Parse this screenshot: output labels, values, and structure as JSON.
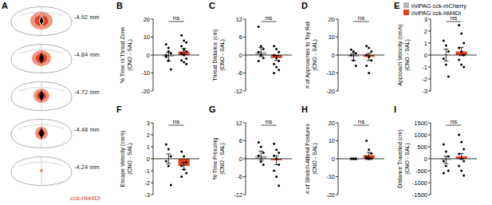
{
  "panel_a": {
    "title": "A",
    "levels": [
      "-4.92 mm",
      "-4.84 mm",
      "-4.72 mm",
      "-4.48 mm",
      "-4.24 mm"
    ],
    "caption": "cck-hM4Di"
  },
  "chart_data": [
    {
      "type": "bar",
      "title": "B",
      "y_label": [
        "% Time in Threat Zone",
        "(CNO - SAL)"
      ],
      "categories": [
        null
      ],
      "tick_labels": "y",
      "legend": "top right",
      "annotation": "ns",
      "ylim": [
        -20,
        20
      ],
      "yticks": [
        -20,
        -10,
        0,
        10,
        20
      ],
      "series": [
        {
          "name": "l/vlPAG cck-mCherry",
          "color": "#b3b3b3",
          "values": [
            -1
          ],
          "errors": [
            2.5
          ],
          "points": [
            6,
            4,
            1,
            -1,
            -3,
            -8,
            0,
            2
          ]
        },
        {
          "name": "l/vlPAG cck-hM4Di",
          "color": "#e2401f",
          "values": [
            2
          ],
          "errors": [
            1.8
          ],
          "points": [
            11,
            8,
            7,
            5,
            3,
            2,
            1,
            0,
            -2,
            -3,
            -4,
            -5
          ]
        }
      ]
    },
    {
      "type": "bar",
      "title": "C",
      "y_label": [
        "Threat Distance (cm)",
        "(CNO - SAL)"
      ],
      "categories": [
        null
      ],
      "tick_labels": "y",
      "annotation": "ns",
      "ylim": [
        -12,
        12
      ],
      "yticks": [
        -12,
        -6,
        0,
        6,
        12
      ],
      "series": [
        {
          "name": "l/vlPAG cck-mCherry",
          "color": "#b3b3b3",
          "values": [
            1
          ],
          "errors": [
            1.5
          ],
          "points": [
            9.5,
            3,
            2,
            1,
            0,
            -1,
            -2
          ]
        },
        {
          "name": "l/vlPAG cck-hM4Di",
          "color": "#e2401f",
          "values": [
            -1
          ],
          "errors": [
            0.8
          ],
          "points": [
            3,
            2,
            1,
            0,
            -1,
            -2,
            -3,
            -4,
            -5,
            -6
          ]
        }
      ]
    },
    {
      "type": "bar",
      "title": "D",
      "y_label": [
        "# of Approaches to Toy Rat",
        "(CNO - SAL)"
      ],
      "categories": [
        null
      ],
      "tick_labels": "y",
      "annotation": "ns",
      "ylim": [
        -20,
        20
      ],
      "yticks": [
        -20,
        -10,
        0,
        10,
        20
      ],
      "series": [
        {
          "name": "l/vlPAG cck-mCherry",
          "color": "#b3b3b3",
          "values": [
            -1
          ],
          "errors": [
            2
          ],
          "points": [
            3,
            2,
            1,
            0,
            -3,
            -6
          ]
        },
        {
          "name": "l/vlPAG cck-hM4Di",
          "color": "#e2401f",
          "values": [
            -1
          ],
          "errors": [
            2
          ],
          "points": [
            5,
            4,
            2,
            0,
            -1,
            -3,
            -6,
            -10
          ]
        }
      ]
    },
    {
      "type": "bar",
      "title": "E",
      "y_label": [
        "Approach Velocity (cm/s)",
        "(CNO - SAL)"
      ],
      "categories": [
        null
      ],
      "tick_labels": "y",
      "annotation": "ns",
      "ylim": [
        -3,
        3
      ],
      "yticks": [
        -3,
        -2,
        -1,
        0,
        1,
        2,
        3
      ],
      "series": [
        {
          "name": "l/vlPAG cck-mCherry",
          "color": "#b3b3b3",
          "values": [
            0
          ],
          "errors": [
            0.5
          ],
          "points": [
            1.2,
            0.8,
            0.3,
            -0.3,
            -0.8,
            -1.8
          ]
        },
        {
          "name": "l/vlPAG cck-hM4Di",
          "color": "#e2401f",
          "values": [
            0.3
          ],
          "errors": [
            0.35
          ],
          "points": [
            2.5,
            1.8,
            1.0,
            0.6,
            0.3,
            0.0,
            -0.4,
            -0.8,
            -1.0
          ]
        }
      ]
    },
    {
      "type": "bar",
      "title": "F",
      "y_label": [
        "Escape Velocity (cm/s)",
        "(CNO - SAL)"
      ],
      "categories": [
        null
      ],
      "tick_labels": "y",
      "annotation": "ns",
      "ylim": [
        -3,
        3
      ],
      "yticks": [
        -3,
        -2,
        -1,
        0,
        1,
        2,
        3
      ],
      "series": [
        {
          "name": "l/vlPAG cck-mCherry",
          "color": "#b3b3b3",
          "values": [
            0
          ],
          "errors": [
            0.4
          ],
          "points": [
            1.2,
            0.8,
            0.2,
            -0.2,
            -0.6,
            -2.2
          ]
        },
        {
          "name": "l/vlPAG cck-hM4Di",
          "color": "#e2401f",
          "values": [
            -0.6
          ],
          "errors": [
            0.3
          ],
          "points": [
            0.6,
            0.2,
            -0.3,
            -0.6,
            -0.9,
            -1.2,
            -1.5
          ]
        }
      ]
    },
    {
      "type": "bar",
      "title": "G",
      "y_label": [
        "% Time Freezing",
        "(CNO - SAL)"
      ],
      "categories": [
        null
      ],
      "tick_labels": "y",
      "annotation": "ns",
      "ylim": [
        -12,
        12
      ],
      "yticks": [
        -12,
        -6,
        0,
        6,
        12
      ],
      "series": [
        {
          "name": "l/vlPAG cck-mCherry",
          "color": "#b3b3b3",
          "values": [
            1
          ],
          "errors": [
            1.5
          ],
          "points": [
            5.5,
            4,
            2,
            1,
            -1,
            -2
          ]
        },
        {
          "name": "l/vlPAG cck-hM4Di",
          "color": "#e2401f",
          "values": [
            -0.5
          ],
          "errors": [
            1.5
          ],
          "points": [
            5,
            3,
            2,
            1,
            0,
            -2,
            -4,
            -6,
            -9
          ]
        }
      ]
    },
    {
      "type": "bar",
      "title": "H",
      "y_label": [
        "# of Stretch-Attend Postures",
        "(CNO - SAL)"
      ],
      "categories": [
        null
      ],
      "tick_labels": "y",
      "annotation": "ns",
      "ylim": [
        -20,
        20
      ],
      "yticks": [
        -20,
        -10,
        0,
        10,
        20
      ],
      "series": [
        {
          "name": "l/vlPAG cck-mCherry",
          "color": "#b3b3b3",
          "values": [
            0
          ],
          "errors": [
            0.3
          ],
          "points": [
            0,
            0,
            0,
            0,
            0,
            0
          ]
        },
        {
          "name": "l/vlPAG cck-hM4Di",
          "color": "#e2401f",
          "values": [
            2
          ],
          "errors": [
            1.5
          ],
          "points": [
            10,
            5,
            3,
            1,
            0,
            0,
            0,
            0
          ]
        }
      ]
    },
    {
      "type": "bar",
      "title": "I",
      "y_label": [
        "Distance Travelled (cm)",
        "(CNO - SAL)"
      ],
      "categories": [
        null
      ],
      "tick_labels": "y",
      "annotation": "ns",
      "ylim": [
        -1500,
        1500
      ],
      "yticks": [
        -1500,
        -1000,
        -500,
        0,
        500,
        1000,
        1500
      ],
      "series": [
        {
          "name": "l/vlPAG cck-mCherry",
          "color": "#b3b3b3",
          "values": [
            -50
          ],
          "errors": [
            150
          ],
          "points": [
            600,
            300,
            100,
            -100,
            -300,
            -500,
            -600
          ]
        },
        {
          "name": "l/vlPAG cck-hM4Di",
          "color": "#e2401f",
          "values": [
            100
          ],
          "errors": [
            120
          ],
          "points": [
            1000,
            700,
            400,
            200,
            0,
            -100,
            -300,
            -500,
            -700
          ]
        }
      ]
    }
  ]
}
